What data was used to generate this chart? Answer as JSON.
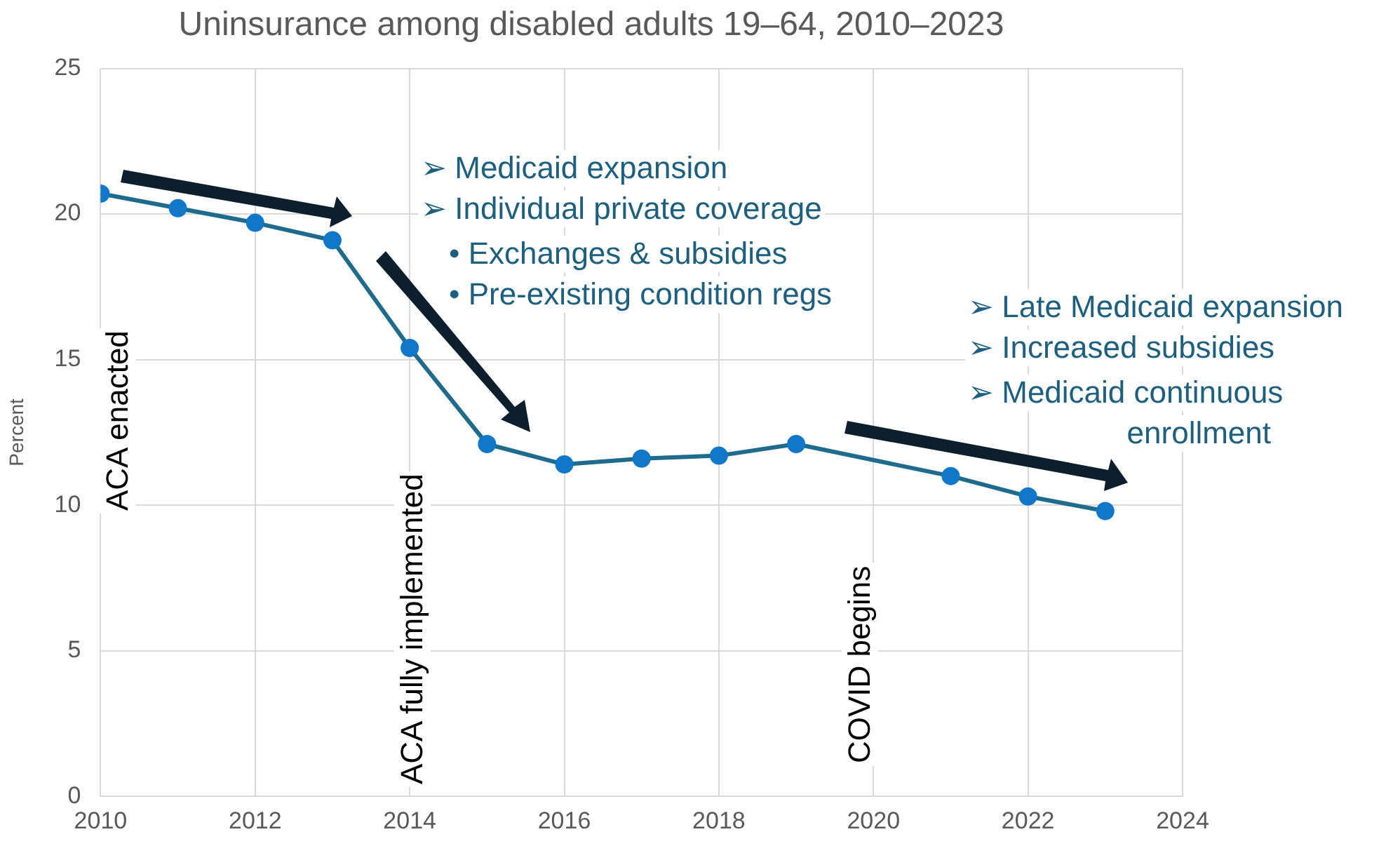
{
  "chart_data": {
    "type": "line",
    "title": "Uninsurance among disabled adults 19–64, 2010–2023",
    "ylabel": "Percent",
    "x": [
      2010,
      2011,
      2012,
      2013,
      2014,
      2015,
      2016,
      2017,
      2018,
      2019,
      2021,
      2022,
      2023
    ],
    "series": [
      {
        "color": "#1f6b8c",
        "values": [
          20.7,
          20.2,
          19.7,
          19.1,
          15.4,
          12.1,
          11.4,
          11.6,
          11.7,
          12.1,
          11.0,
          10.3,
          9.8
        ]
      }
    ],
    "xlim": [
      2010,
      2024
    ],
    "xticks": [
      2010,
      2012,
      2014,
      2016,
      2018,
      2020,
      2022,
      2024
    ],
    "ylim": [
      0,
      25
    ],
    "yticks": [
      0,
      5,
      10,
      15,
      20,
      25
    ],
    "grid": true,
    "marker": "circle",
    "line_style": "solid",
    "legend": false,
    "annotations": [
      "ACA enacted",
      "ACA fully implemented",
      "COVID begins",
      "➢  Medicaid expansion",
      "➢  Individual private coverage",
      "•   Exchanges & subsidies",
      "•   Pre-existing condition regs",
      "➢  Late Medicaid expansion",
      "➢  Increased subsidies",
      "➢  Medicaid continuous",
      "enrollment"
    ]
  }
}
